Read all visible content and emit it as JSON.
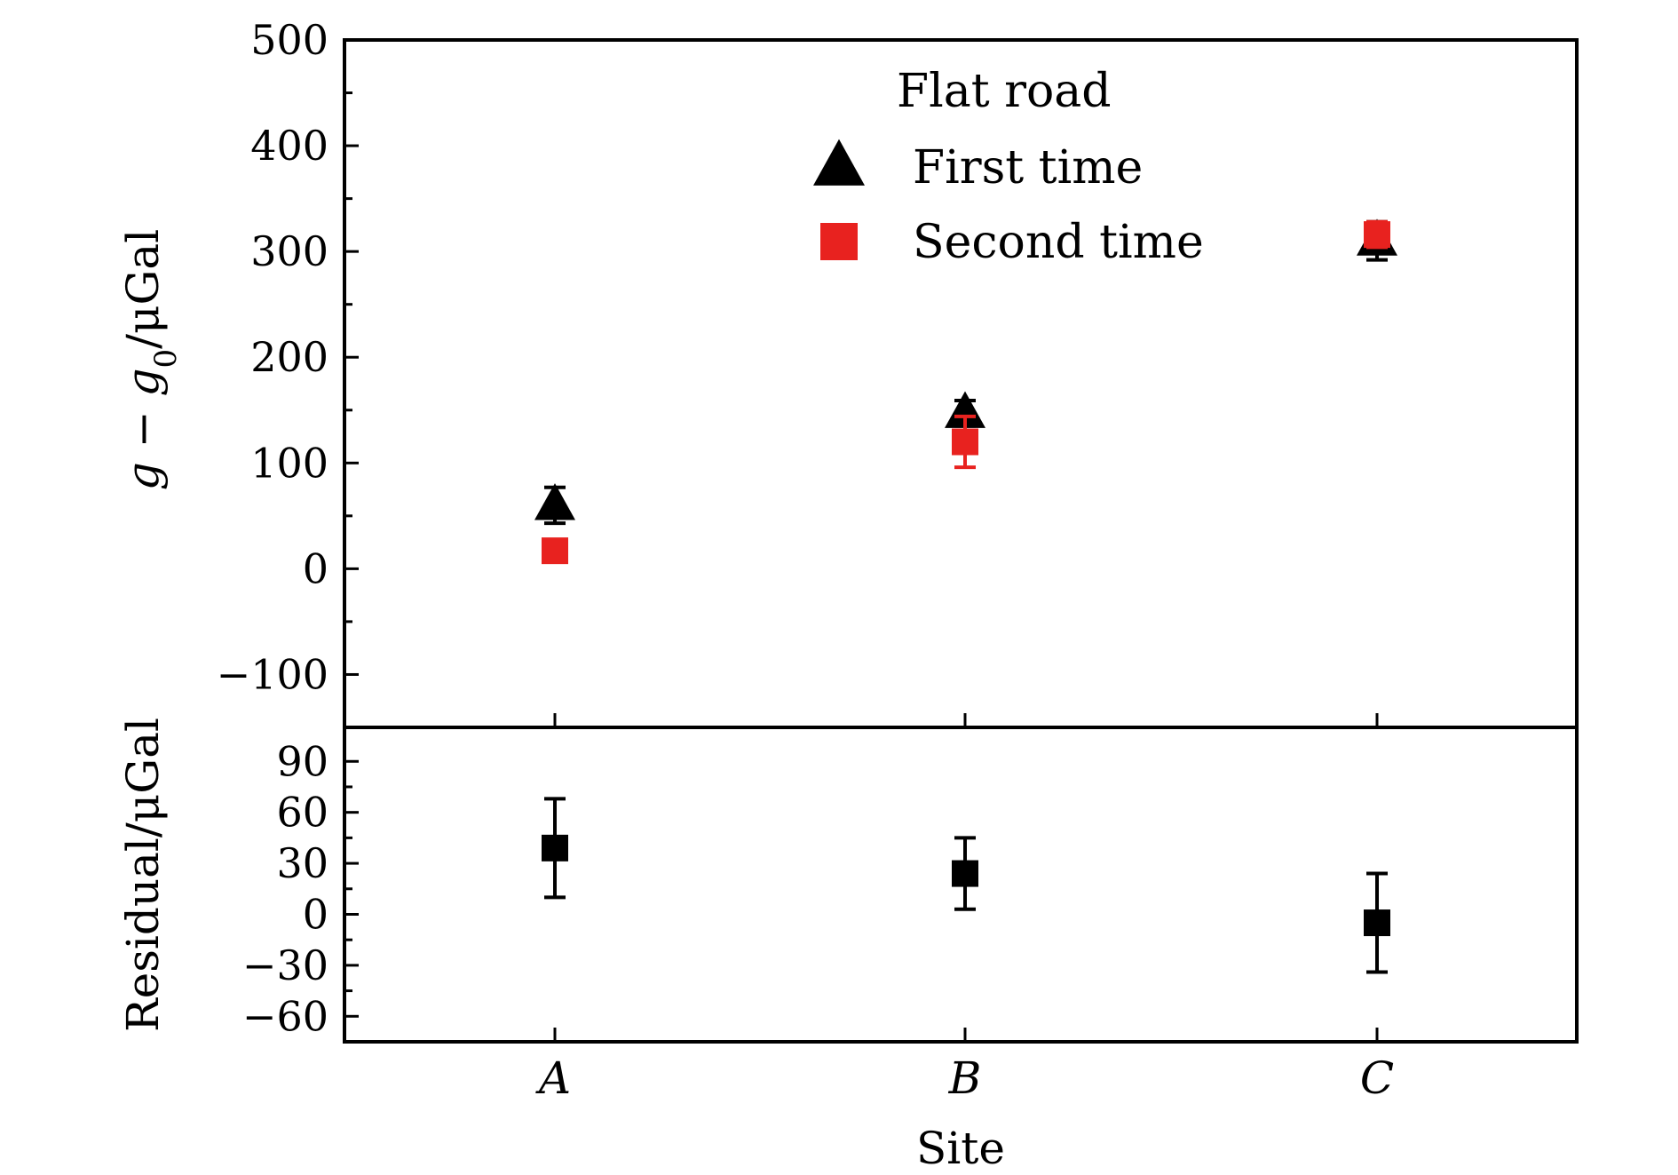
{
  "chart_data": [
    {
      "panel": "top",
      "type": "scatter",
      "ylabel_parts": {
        "g": "g",
        "minus": " − ",
        "g0": "g",
        "sub": "0",
        "unit": "/μGal"
      },
      "ylim": [
        -150,
        500
      ],
      "yticks": [
        -100,
        0,
        100,
        200,
        300,
        400,
        500
      ],
      "ytick_labels": [
        "−100",
        "0",
        "100",
        "200",
        "300",
        "400",
        "500"
      ],
      "legend": {
        "title": "Flat road",
        "position": "top-center"
      },
      "categories": [
        "A",
        "B",
        "C"
      ],
      "series": [
        {
          "name": "First time",
          "marker": "triangle",
          "color": "#000000",
          "values": [
            60,
            147,
            310
          ],
          "errors": [
            17,
            12,
            18
          ]
        },
        {
          "name": "Second time",
          "marker": "square",
          "color": "#e8221f",
          "values": [
            17,
            120,
            316
          ],
          "errors": [
            9,
            24,
            12
          ]
        }
      ]
    },
    {
      "panel": "bottom",
      "type": "scatter",
      "ylabel": "Residual/μGal",
      "ylim": [
        -75,
        110
      ],
      "yticks": [
        -60,
        -30,
        0,
        30,
        60,
        90
      ],
      "ytick_labels": [
        "−60",
        "−30",
        "0",
        "30",
        "60",
        "90"
      ],
      "categories": [
        "A",
        "B",
        "C"
      ],
      "series": [
        {
          "marker": "square",
          "color": "#000000",
          "values": [
            39,
            24,
            -5
          ],
          "errors": [
            29,
            21,
            29
          ]
        }
      ]
    }
  ],
  "xlabel": "Site"
}
